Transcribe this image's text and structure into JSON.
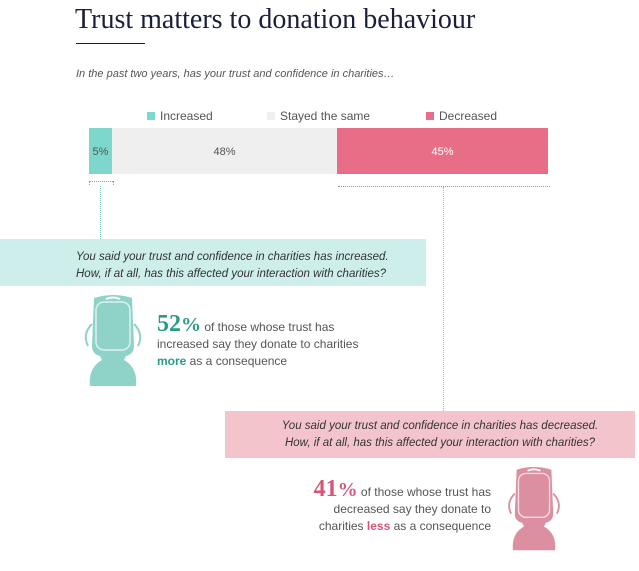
{
  "page": {
    "title": "Trust matters to donation behaviour",
    "question": "In the past two years, has your trust and confidence in charities…"
  },
  "chart_data": {
    "type": "bar",
    "orientation": "horizontal-stacked",
    "categories": [
      "Increased",
      "Stayed the same",
      "Decreased"
    ],
    "values": [
      5,
      48,
      45
    ],
    "value_labels": [
      "5%",
      "48%",
      "45%"
    ],
    "colors": [
      "#7dd7cd",
      "#efefef",
      "#e86e88"
    ],
    "legend": {
      "placement": "top",
      "entries": [
        "Increased",
        "Stayed the same",
        "Decreased"
      ]
    },
    "xlim": [
      0,
      100
    ]
  },
  "panels": {
    "increased": {
      "line1": "You said your trust and confidence in charities has increased.",
      "line2": "How, if at all, has this affected your interaction with charities?"
    },
    "decreased": {
      "line1": "You said your trust and confidence in charities has decreased.",
      "line2": "How, if at all, has this affected your interaction with charities?"
    }
  },
  "stats": {
    "increased": {
      "number": "52",
      "percent_sign": "%",
      "line1_rest": " of those whose trust has",
      "line2": "increased say they donate to charities",
      "emphasis": "more",
      "line3_rest": " as a consequence"
    },
    "decreased": {
      "number": "41",
      "percent_sign": "%",
      "line1_rest": " of those whose trust has",
      "line2": "decreased say they donate to",
      "line3_pre": "charities ",
      "emphasis": "less",
      "line3_rest": " as a consequence"
    }
  },
  "icons": {
    "increased": "donation-jar-icon",
    "decreased": "donation-jar-icon"
  },
  "colors": {
    "increased": "#7dd7cd",
    "increased_text": "#2c9a89",
    "decreased": "#e86e88",
    "decreased_text": "#d55777",
    "stayed": "#efefef",
    "title": "#1b1f3b"
  }
}
